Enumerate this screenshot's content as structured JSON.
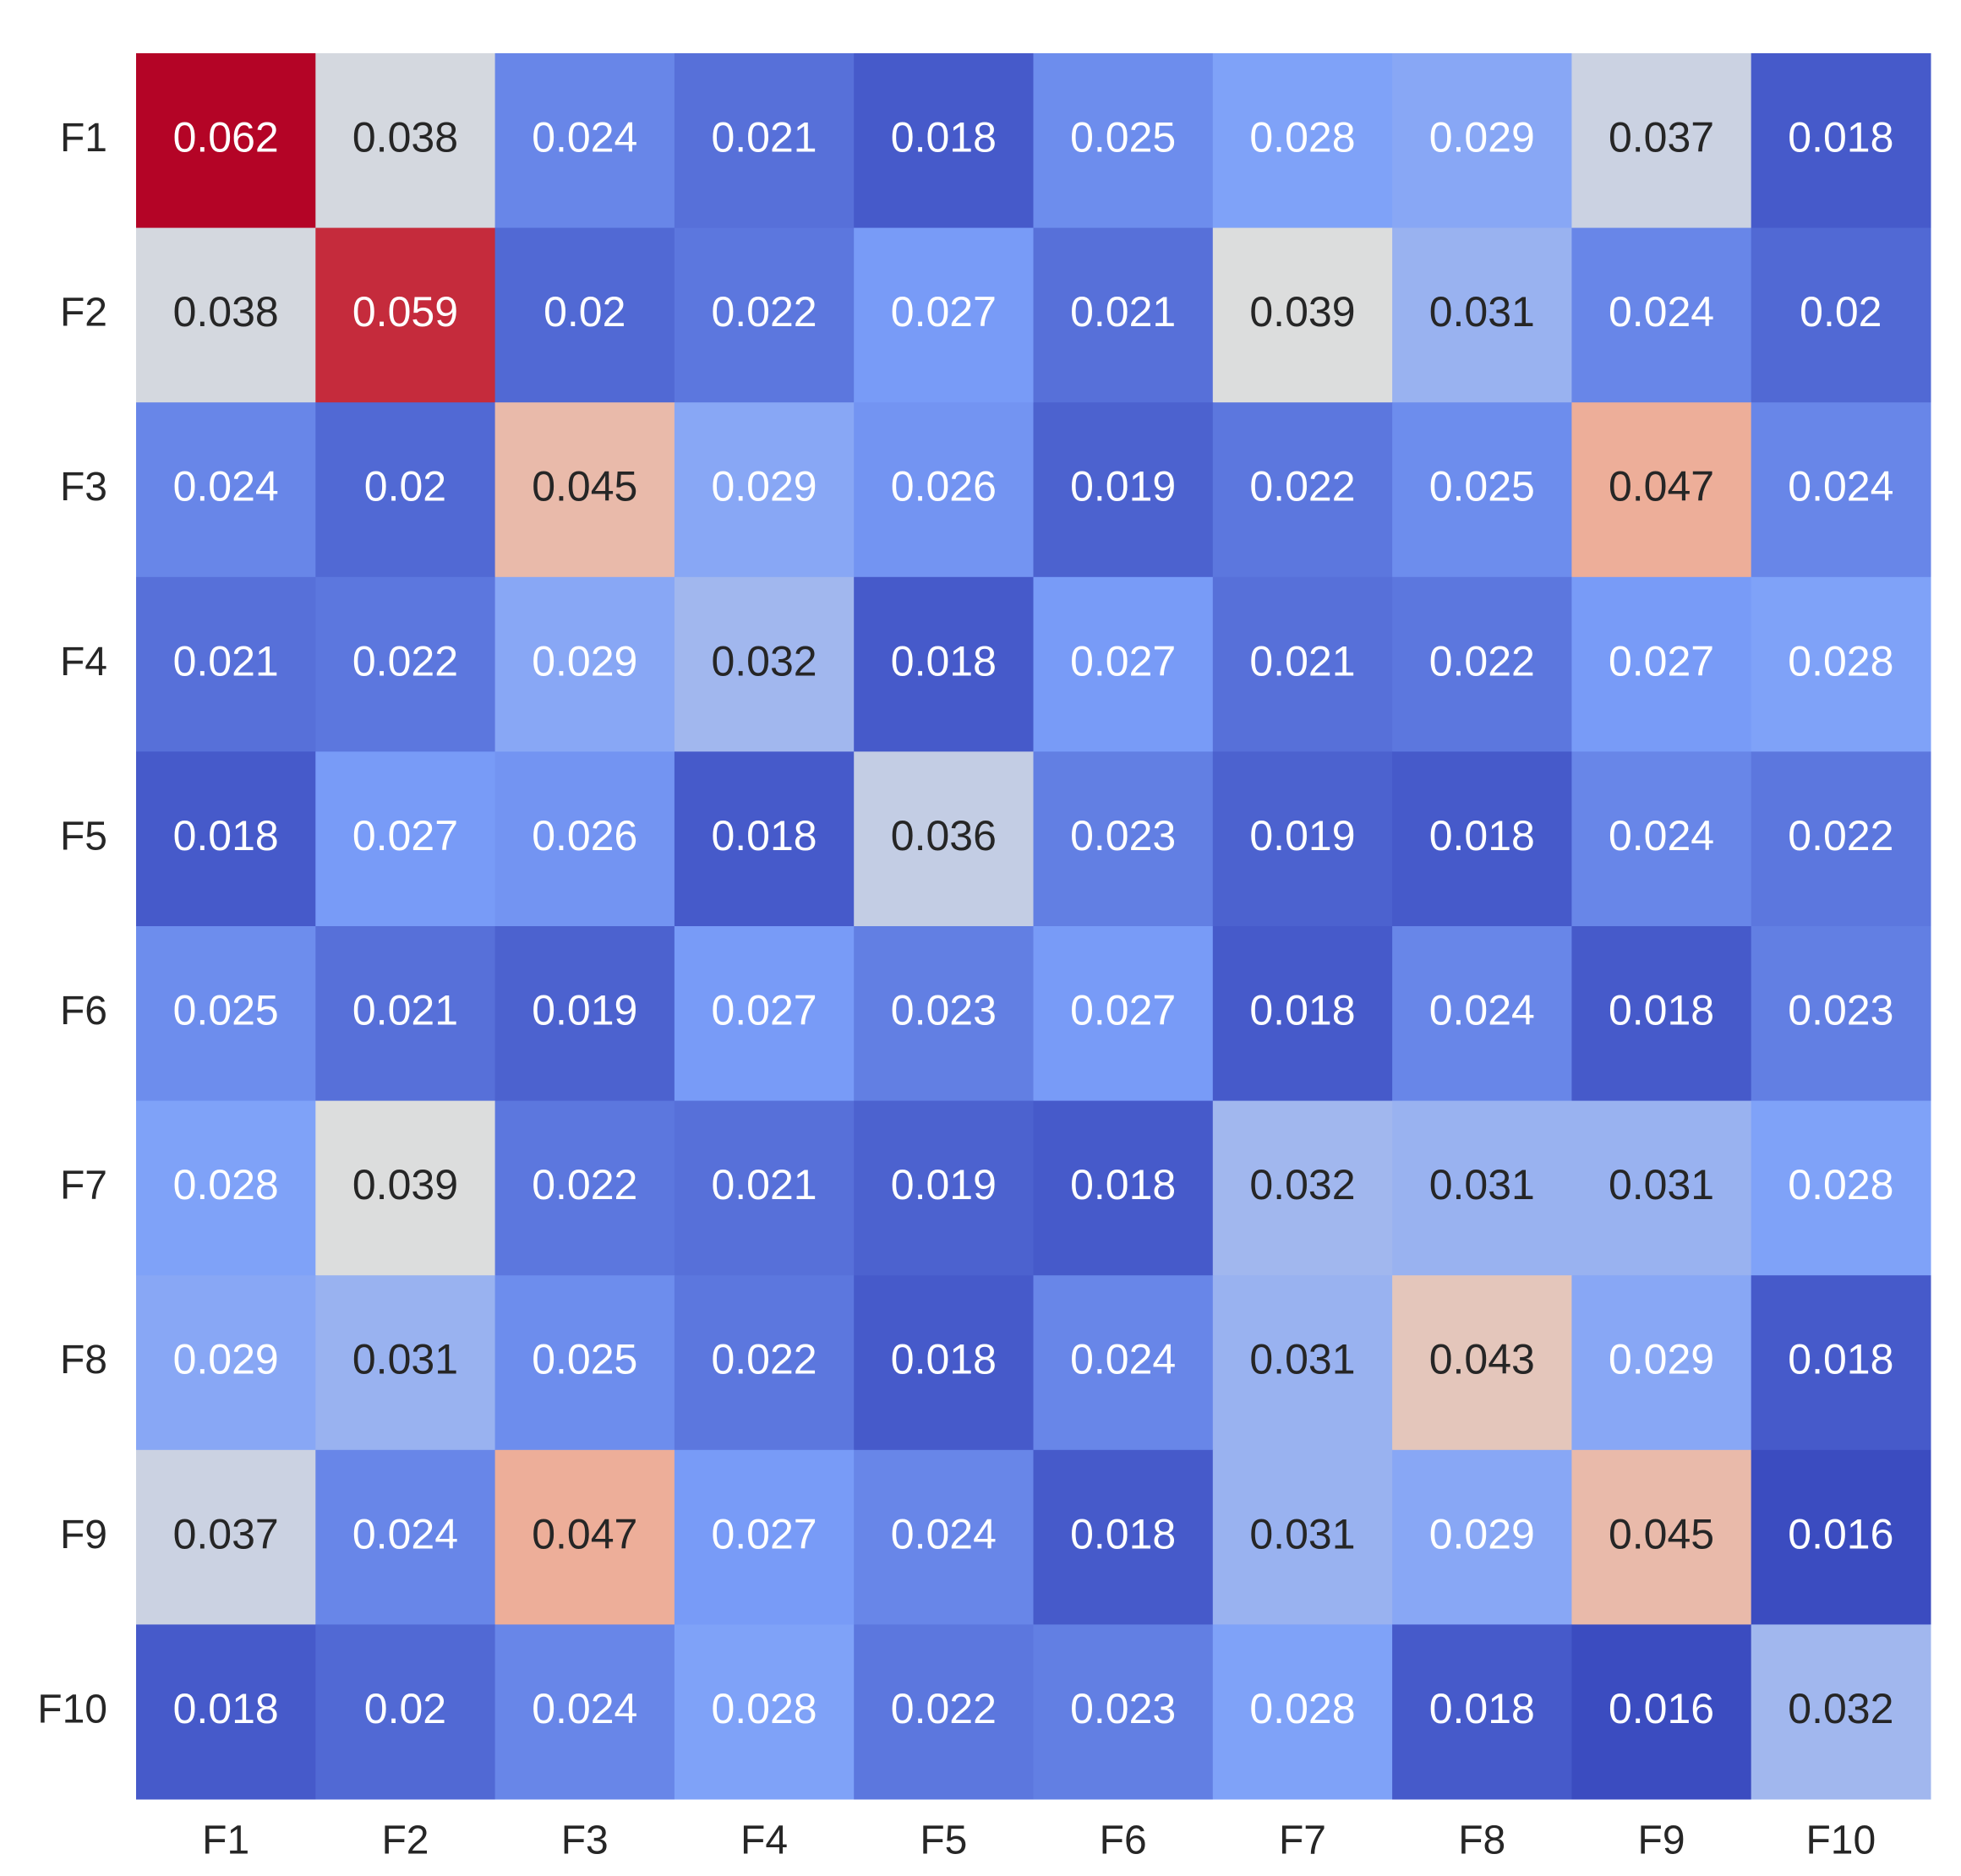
{
  "chart_data": {
    "type": "heatmap",
    "x_categories": [
      "F1",
      "F2",
      "F3",
      "F4",
      "F5",
      "F6",
      "F7",
      "F8",
      "F9",
      "F10"
    ],
    "y_categories": [
      "F1",
      "F2",
      "F3",
      "F4",
      "F5",
      "F6",
      "F7",
      "F8",
      "F9",
      "F10"
    ],
    "values": [
      [
        0.062,
        0.038,
        0.024,
        0.021,
        0.018,
        0.025,
        0.028,
        0.029,
        0.037,
        0.018
      ],
      [
        0.038,
        0.059,
        0.02,
        0.022,
        0.027,
        0.021,
        0.039,
        0.031,
        0.024,
        0.02
      ],
      [
        0.024,
        0.02,
        0.045,
        0.029,
        0.026,
        0.019,
        0.022,
        0.025,
        0.047,
        0.024
      ],
      [
        0.021,
        0.022,
        0.029,
        0.032,
        0.018,
        0.027,
        0.021,
        0.022,
        0.027,
        0.028
      ],
      [
        0.018,
        0.027,
        0.026,
        0.018,
        0.036,
        0.023,
        0.019,
        0.018,
        0.024,
        0.022
      ],
      [
        0.025,
        0.021,
        0.019,
        0.027,
        0.023,
        0.027,
        0.018,
        0.024,
        0.018,
        0.023
      ],
      [
        0.028,
        0.039,
        0.022,
        0.021,
        0.019,
        0.018,
        0.032,
        0.031,
        0.031,
        0.028
      ],
      [
        0.029,
        0.031,
        0.025,
        0.022,
        0.018,
        0.024,
        0.031,
        0.043,
        0.029,
        0.018
      ],
      [
        0.037,
        0.024,
        0.047,
        0.027,
        0.024,
        0.018,
        0.031,
        0.029,
        0.045,
        0.016
      ],
      [
        0.018,
        0.02,
        0.024,
        0.028,
        0.022,
        0.023,
        0.028,
        0.018,
        0.016,
        0.032
      ]
    ],
    "colormap": [
      "#3b4cc0",
      "#7b9ff9",
      "#dcdddd",
      "#f49a7b",
      "#b40426"
    ]
  }
}
